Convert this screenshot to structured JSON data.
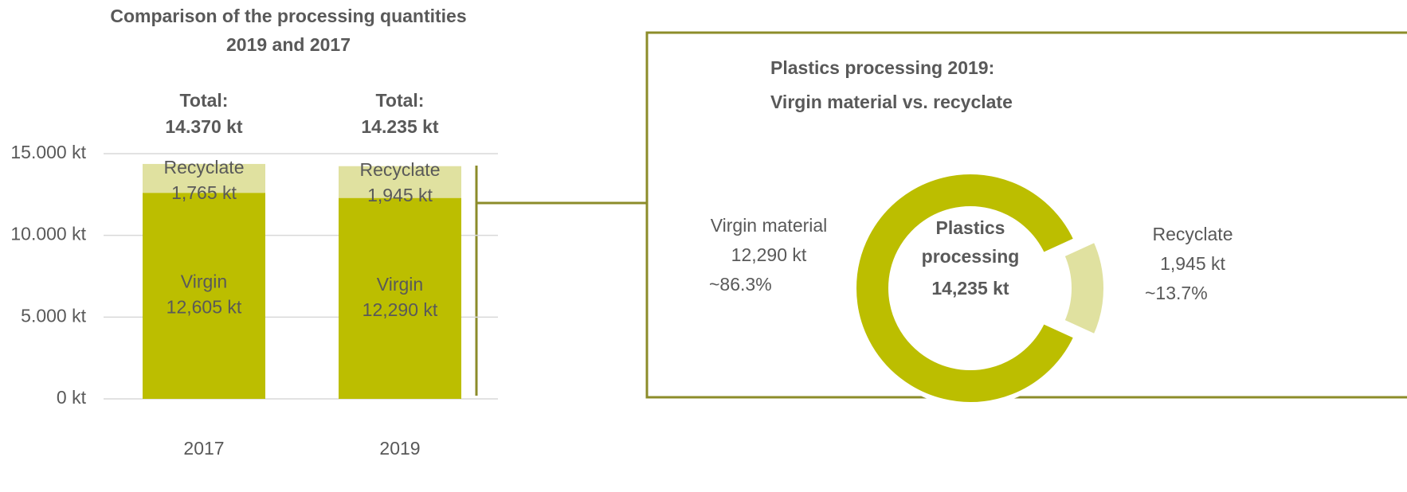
{
  "chart_data": [
    {
      "type": "stacked_bar",
      "title": [
        "Comparison of the processing quantities",
        "2019 and 2017"
      ],
      "categories": [
        "2017",
        "2019"
      ],
      "annotations": [
        [
          "Total:",
          "14.370 kt"
        ],
        [
          "Total:",
          "14.235 kt"
        ]
      ],
      "series": [
        {
          "name": "Virgin",
          "color": "#bcbe00",
          "values": [
            12605,
            12290
          ],
          "value_labels": [
            "12,605 kt",
            "12,290 kt"
          ]
        },
        {
          "name": "Recyclate",
          "color": "#e0e1a0",
          "values": [
            1765,
            1945
          ],
          "value_labels": [
            "1,765 kt",
            "1,945 kt"
          ]
        }
      ],
      "ylim": [
        0,
        15000
      ],
      "yticks": [
        {
          "value": 0,
          "label": "0 kt"
        },
        {
          "value": 5000,
          "label": "5.000 kt"
        },
        {
          "value": 10000,
          "label": "10.000 kt"
        },
        {
          "value": 15000,
          "label": "15.000 kt"
        }
      ],
      "grid": true
    },
    {
      "type": "donut",
      "title": [
        "Plastics processing  2019:",
        "Virgin material vs. recyclate"
      ],
      "center_text": [
        "Plastics",
        "processing"
      ],
      "total": 14235,
      "total_label": "14,235 kt",
      "categories": [
        "Virgin material",
        "Recyclate"
      ],
      "values": [
        12290,
        1945
      ],
      "value_labels": [
        "12,290 kt",
        "1,945 kt"
      ],
      "percent_labels": [
        "~86.3%",
        "~13.7%"
      ],
      "colors": [
        "#bcbe00",
        "#e0e1a0"
      ],
      "exploded": "Recyclate"
    }
  ]
}
